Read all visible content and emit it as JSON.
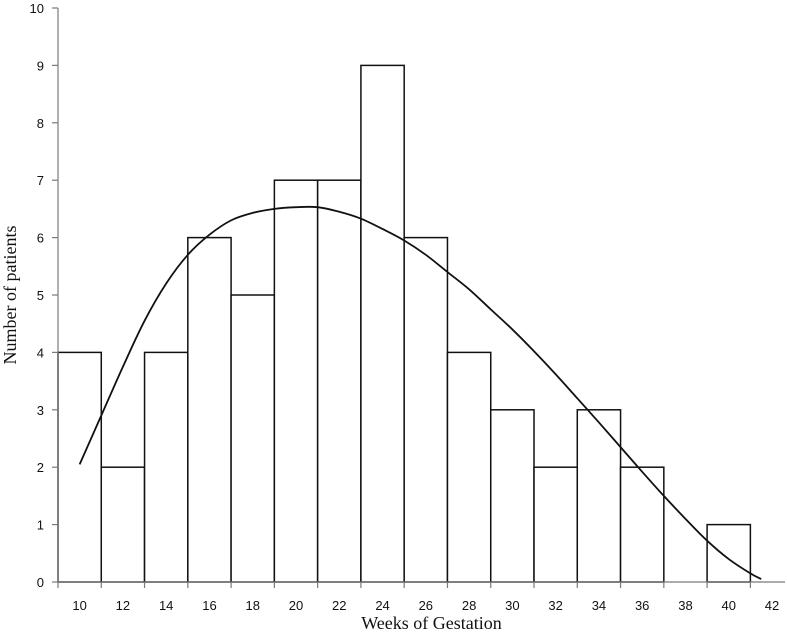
{
  "chart_data": {
    "type": "bar",
    "title": "",
    "xlabel": "Weeks of Gestation",
    "ylabel": "Number of patients",
    "bin_edges": [
      9,
      11,
      13,
      15,
      17,
      19,
      21,
      23,
      25,
      27,
      29,
      31,
      33,
      35,
      37,
      39,
      41
    ],
    "values": [
      4,
      2,
      4,
      6,
      5,
      7,
      7,
      9,
      6,
      4,
      3,
      2,
      3,
      2,
      0,
      1
    ],
    "xlim": [
      9,
      42.6
    ],
    "ylim": [
      0,
      10
    ],
    "x_ticks": [
      10,
      12,
      14,
      16,
      18,
      20,
      22,
      24,
      26,
      28,
      30,
      32,
      34,
      36,
      38,
      40,
      42
    ],
    "y_ticks": [
      0,
      1,
      2,
      3,
      4,
      5,
      6,
      7,
      8,
      9,
      10
    ],
    "fitted_curve": {
      "x": [
        10,
        11,
        12,
        13,
        14,
        15,
        16,
        17,
        18,
        19,
        20,
        21,
        22,
        23,
        24,
        25,
        26,
        27,
        28,
        29,
        30,
        31,
        32,
        33,
        34,
        35,
        36,
        37,
        38,
        39,
        40,
        41,
        41.5
      ],
      "y": [
        2.05,
        2.9,
        3.75,
        4.55,
        5.2,
        5.7,
        6.05,
        6.3,
        6.43,
        6.5,
        6.53,
        6.53,
        6.45,
        6.33,
        6.15,
        5.95,
        5.7,
        5.4,
        5.1,
        4.75,
        4.4,
        4.02,
        3.62,
        3.2,
        2.78,
        2.35,
        1.92,
        1.5,
        1.1,
        0.72,
        0.4,
        0.15,
        0.05
      ]
    },
    "grid": false,
    "legend": "none"
  }
}
